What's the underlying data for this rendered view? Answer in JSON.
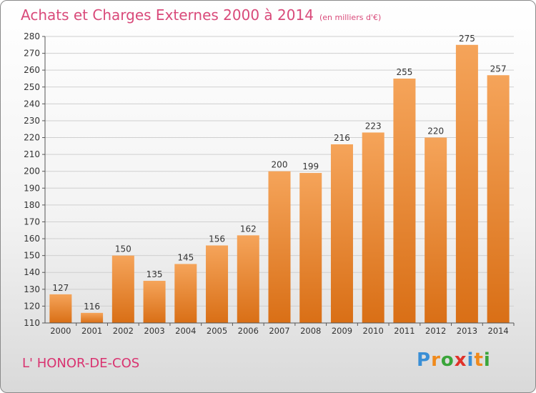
{
  "title": "Achats et Charges Externes 2000 à 2014",
  "subtitle": "(en milliers d'€)",
  "location": "L' HONOR-DE-COS",
  "logo": {
    "letters": [
      "P",
      "r",
      "o",
      "x",
      "i",
      "t",
      "i"
    ],
    "colors": [
      "#3a8fd6",
      "#f08a1c",
      "#3aa53a",
      "#e0322a",
      "#3a8fd6",
      "#f08a1c",
      "#3aa53a"
    ]
  },
  "colors": {
    "title": "#d94a7a",
    "bar_top": "#f5a45a",
    "bar_bottom": "#d96f16",
    "grid": "#cfcfcf"
  },
  "chart_data": {
    "type": "bar",
    "categories": [
      "2000",
      "2001",
      "2002",
      "2003",
      "2004",
      "2005",
      "2006",
      "2007",
      "2008",
      "2009",
      "2010",
      "2011",
      "2012",
      "2013",
      "2014"
    ],
    "values": [
      127,
      116,
      150,
      135,
      145,
      156,
      162,
      200,
      199,
      216,
      223,
      255,
      220,
      275,
      257
    ],
    "ylim": [
      110,
      280
    ],
    "yticks": [
      110,
      120,
      130,
      140,
      150,
      160,
      170,
      180,
      190,
      200,
      210,
      220,
      230,
      240,
      250,
      260,
      270,
      280
    ],
    "grid": true,
    "data_labels": true
  }
}
